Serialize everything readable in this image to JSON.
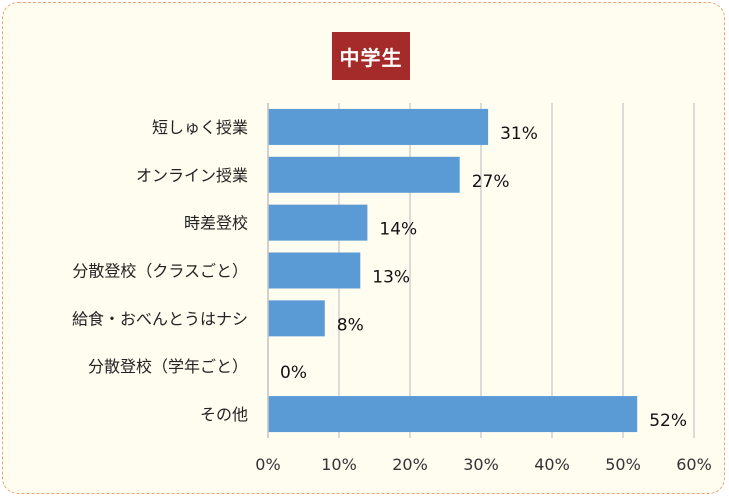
{
  "chart_data": {
    "type": "bar",
    "orientation": "horizontal",
    "title": "中学生",
    "categories": [
      "短しゅく授業",
      "オンライン授業",
      "時差登校",
      "分散登校（クラスごと）",
      "給食・おべんとうはナシ",
      "分散登校（学年ごと）",
      "その他"
    ],
    "values": [
      31,
      27,
      14,
      13,
      8,
      0,
      52
    ],
    "data_labels": [
      "31%",
      "27%",
      "14%",
      "13%",
      "8%",
      "0%",
      "52%"
    ],
    "x_ticks": [
      "0%",
      "10%",
      "20%",
      "30%",
      "40%",
      "50%",
      "60%"
    ],
    "xlim": [
      0,
      60
    ],
    "grid": "vertical",
    "bar_color": "#5b9bd5"
  }
}
